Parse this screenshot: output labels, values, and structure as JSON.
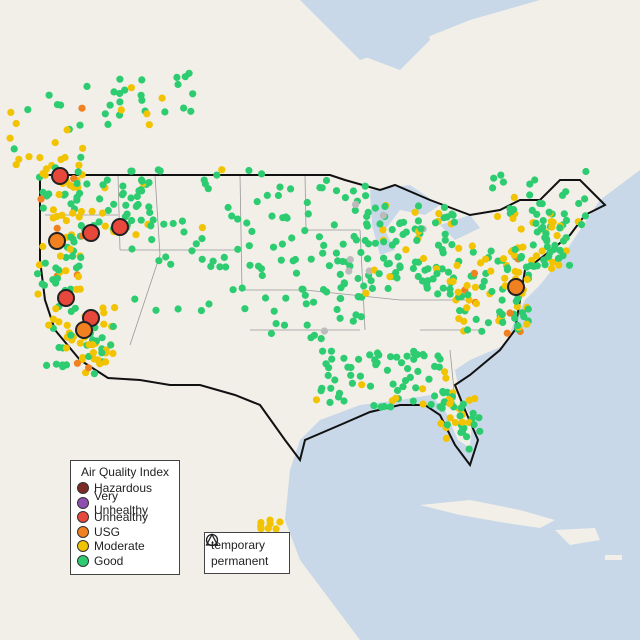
{
  "legend": {
    "title": "Air Quality Index",
    "categories": [
      {
        "label": "Hazardous",
        "color": "#7b2a25"
      },
      {
        "label": "Very Unhealthy",
        "color": "#8e4fb0"
      },
      {
        "label": "Unhealthy",
        "color": "#e8473b"
      },
      {
        "label": "USG",
        "color": "#f08020"
      },
      {
        "label": "Moderate",
        "color": "#f2c300"
      },
      {
        "label": "Good",
        "color": "#2ecc71"
      }
    ]
  },
  "shape_legend": {
    "temporary_label": "temporary",
    "permanent_label": "permanent"
  },
  "colors": {
    "water": "#c8d8e8",
    "land": "#f2efe9",
    "border": "#111111",
    "state_lines": "#999999",
    "no_data": "#bbbbbb"
  }
}
